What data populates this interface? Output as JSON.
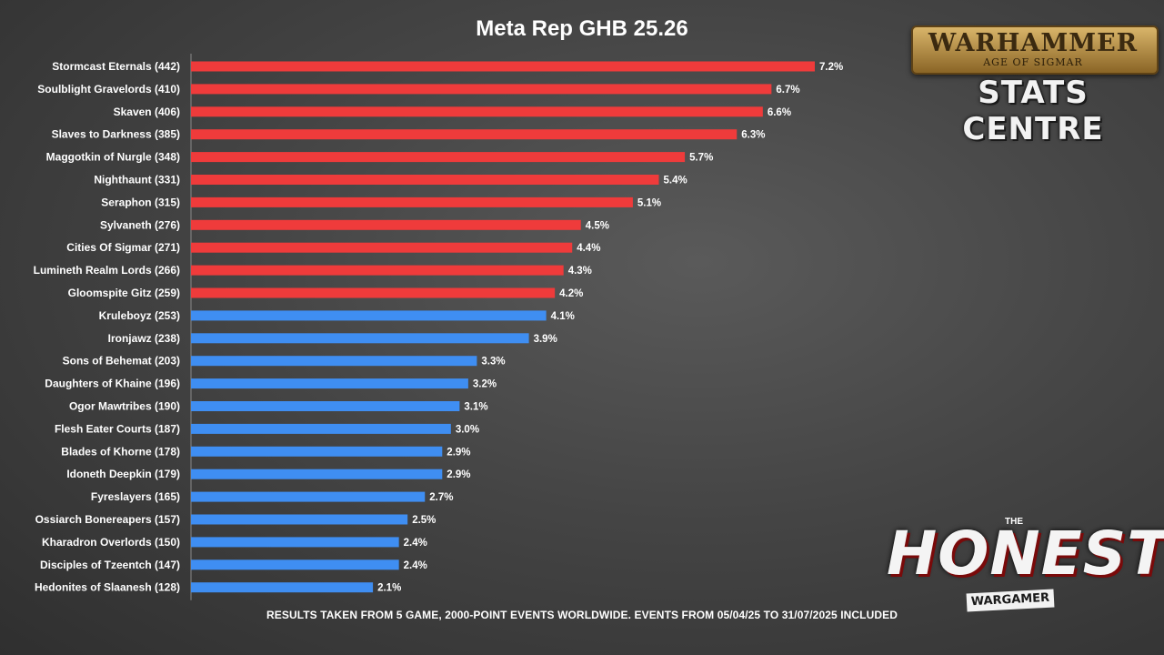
{
  "title": "Meta Rep GHB 25.26",
  "footnote": "RESULTS TAKEN FROM 5 GAME, 2000-POINT EVENTS WORLDWIDE. EVENTS FROM 05/04/25 TO 31/07/2025 INCLUDED",
  "logos": {
    "warhammer_text": "WARHAMMER",
    "aos_text": "AGE OF SIGMAR",
    "stats_text": "STATS CENTRE",
    "the_text": "THE",
    "honest_text": "HONEST",
    "wargamer_text": "WARGAMER"
  },
  "colors": {
    "red": "#ef3b3b",
    "blue": "#3f8ef2",
    "text": "#ffffff"
  },
  "chart_data": {
    "type": "bar",
    "orientation": "horizontal",
    "title": "Meta Rep GHB 25.26",
    "categories": [
      "Stormcast Eternals (442)",
      "Soulblight Gravelords (410)",
      "Skaven (406)",
      "Slaves to Darkness (385)",
      "Maggotkin of Nurgle (348)",
      "Nighthaunt (331)",
      "Seraphon (315)",
      "Sylvaneth (276)",
      "Cities Of Sigmar (271)",
      "Lumineth Realm Lords (266)",
      "Gloomspite Gitz (259)",
      "Kruleboyz (253)",
      "Ironjawz (238)",
      "Sons of Behemat (203)",
      "Daughters of Khaine (196)",
      "Ogor Mawtribes (190)",
      "Flesh Eater Courts (187)",
      "Blades of Khorne (178)",
      "Idoneth Deepkin (179)",
      "Fyreslayers (165)",
      "Ossiarch Bonereapers (157)",
      "Kharadron Overlords (150)",
      "Disciples of Tzeentch (147)",
      "Hedonites of Slaanesh (128)"
    ],
    "values": [
      7.2,
      6.7,
      6.6,
      6.3,
      5.7,
      5.4,
      5.1,
      4.5,
      4.4,
      4.3,
      4.2,
      4.1,
      3.9,
      3.3,
      3.2,
      3.1,
      3.0,
      2.9,
      2.9,
      2.7,
      2.5,
      2.4,
      2.4,
      2.1
    ],
    "labels": [
      "7.2%",
      "6.7%",
      "6.6%",
      "6.3%",
      "5.7%",
      "5.4%",
      "5.1%",
      "4.5%",
      "4.4%",
      "4.3%",
      "4.2%",
      "4.1%",
      "3.9%",
      "3.3%",
      "3.2%",
      "3.1%",
      "3.0%",
      "2.9%",
      "2.9%",
      "2.7%",
      "2.5%",
      "2.4%",
      "2.4%",
      "2.1%"
    ],
    "bar_colors": [
      "red",
      "red",
      "red",
      "red",
      "red",
      "red",
      "red",
      "red",
      "red",
      "red",
      "red",
      "blue",
      "blue",
      "blue",
      "blue",
      "blue",
      "blue",
      "blue",
      "blue",
      "blue",
      "blue",
      "blue",
      "blue",
      "blue"
    ],
    "unit": "%",
    "xlim": [
      0,
      7.2
    ],
    "grid": false
  }
}
